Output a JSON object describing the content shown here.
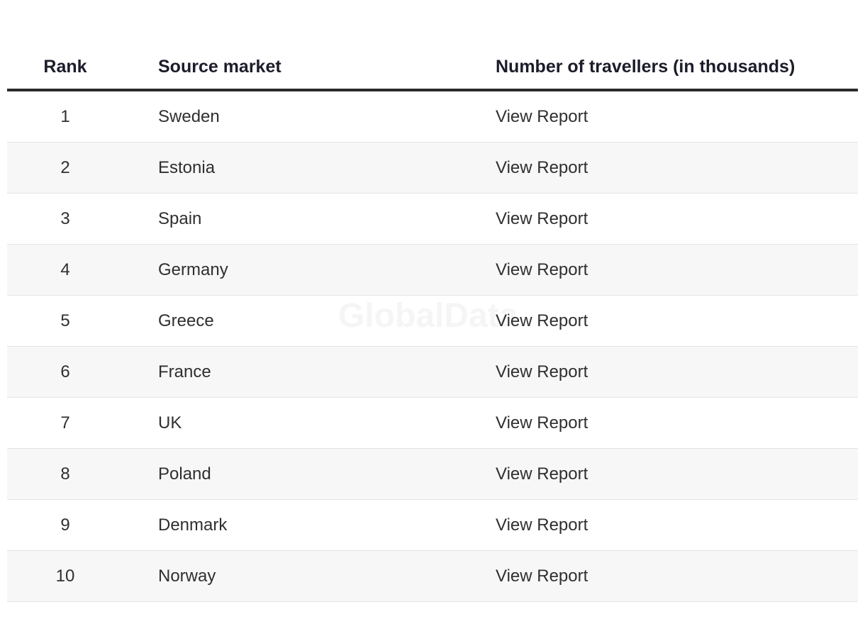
{
  "table": {
    "header": [
      "Rank",
      "Source market",
      "Number of travellers (in thousands)"
    ],
    "rows": [
      [
        1,
        "Sweden",
        "View Report"
      ],
      [
        2,
        "Estonia",
        "View Report"
      ],
      [
        3,
        "Spain",
        "View Report"
      ],
      [
        4,
        "Germany",
        "View Report"
      ],
      [
        5,
        "Greece",
        "View Report"
      ],
      [
        6,
        "France",
        "View Report"
      ],
      [
        7,
        "UK",
        "View Report"
      ],
      [
        8,
        "Poland",
        "View Report"
      ],
      [
        9,
        "Denmark",
        "View Report"
      ],
      [
        10,
        "Norway",
        "View Report"
      ]
    ]
  },
  "watermark": "GlobalData"
}
